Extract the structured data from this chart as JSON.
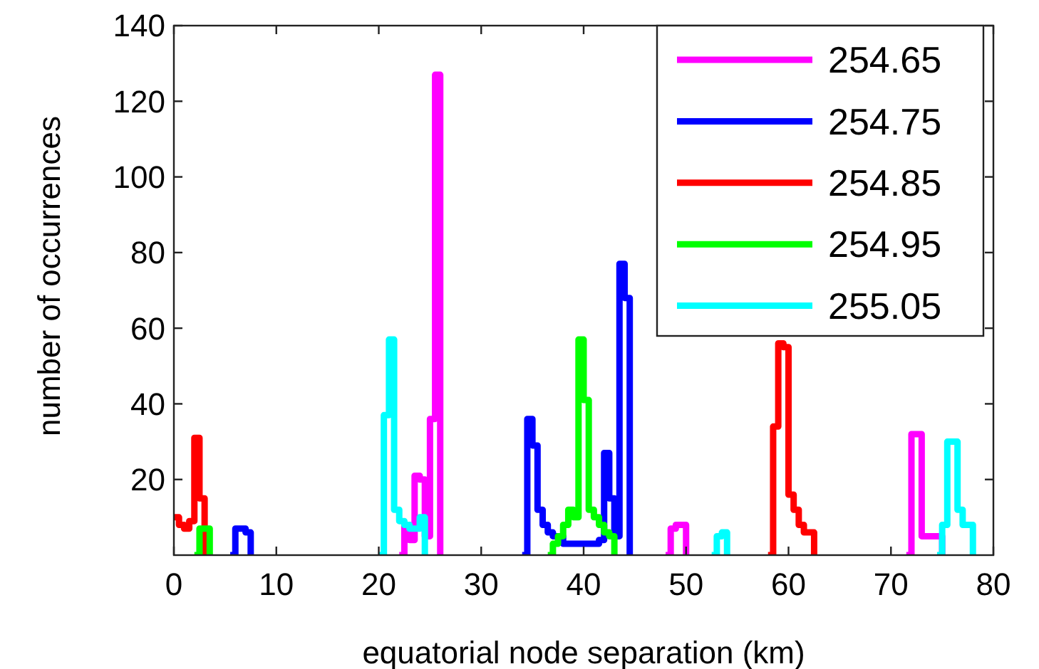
{
  "chart_data": {
    "type": "step",
    "xlabel": "equatorial node separation (km)",
    "ylabel": "number of occurrences",
    "xlim": [
      0,
      80
    ],
    "ylim": [
      0,
      140
    ],
    "xticks": [
      0,
      10,
      20,
      30,
      40,
      50,
      60,
      70,
      80
    ],
    "yticks": [
      20,
      40,
      60,
      80,
      100,
      120,
      140
    ],
    "grid": false,
    "legend": "top right",
    "line_style": "solid",
    "marker": "none",
    "series": [
      {
        "name": "254.65",
        "color": "#ff00ff",
        "x": [
          22,
          22.5,
          23,
          23.5,
          24,
          24.5,
          25,
          25.5,
          26,
          null,
          48,
          48.5,
          49,
          49.5,
          50,
          null,
          71.5,
          72,
          72.5,
          73,
          73.5,
          74,
          74.5,
          75
        ],
        "values": [
          0,
          8,
          4,
          21,
          20,
          5,
          36,
          127,
          0,
          null,
          0,
          7,
          8,
          8,
          0,
          null,
          0,
          32,
          32,
          5,
          5,
          5,
          5,
          0
        ]
      },
      {
        "name": "254.75",
        "color": "#0000ff",
        "x": [
          5.5,
          6,
          6.5,
          7,
          7.5,
          null,
          34,
          34.5,
          35,
          35.5,
          36,
          36.5,
          37,
          37.5,
          38,
          38.5,
          39,
          39.5,
          40,
          40.5,
          41,
          41.5,
          42,
          42.5,
          43,
          43.5,
          44,
          44.5
        ],
        "values": [
          0,
          7,
          7,
          6,
          0,
          null,
          0,
          36,
          29,
          12,
          8,
          6,
          5,
          5,
          3,
          3,
          3,
          3,
          3,
          3,
          3,
          4,
          27,
          15,
          5,
          77,
          68,
          0
        ]
      },
      {
        "name": "254.85",
        "color": "#ff0000",
        "x": [
          0,
          0.5,
          1,
          1.5,
          2,
          2.5,
          3,
          null,
          58,
          58.5,
          59,
          59.5,
          60,
          60.5,
          61,
          61.5,
          62,
          62.5
        ],
        "values": [
          10,
          8,
          7,
          9,
          31,
          15,
          0,
          null,
          0,
          34,
          56,
          55,
          16,
          12,
          8,
          6,
          6,
          0
        ]
      },
      {
        "name": "254.95",
        "color": "#00ff00",
        "x": [
          2,
          2.5,
          3,
          3.5,
          null,
          36.5,
          37,
          37.5,
          38,
          38.5,
          39,
          39.5,
          40,
          40.5,
          41,
          41.5,
          42,
          42.5,
          43
        ],
        "values": [
          0,
          7,
          7,
          0,
          null,
          0,
          3,
          5,
          8,
          12,
          10,
          57,
          41,
          12,
          10,
          8,
          6,
          5,
          0
        ]
      },
      {
        "name": "255.05",
        "color": "#00ffff",
        "x": [
          20,
          20.5,
          21,
          21.5,
          22,
          22.5,
          23,
          23.5,
          24,
          24.5,
          null,
          52.5,
          53,
          53.5,
          54,
          null,
          74.5,
          75,
          75.5,
          76,
          76.5,
          77,
          77.5,
          78
        ],
        "values": [
          0,
          37,
          57,
          12,
          9,
          8,
          7,
          7,
          10,
          0,
          null,
          0,
          5,
          6,
          0,
          null,
          0,
          8,
          30,
          30,
          12,
          8,
          8,
          0
        ]
      }
    ]
  }
}
